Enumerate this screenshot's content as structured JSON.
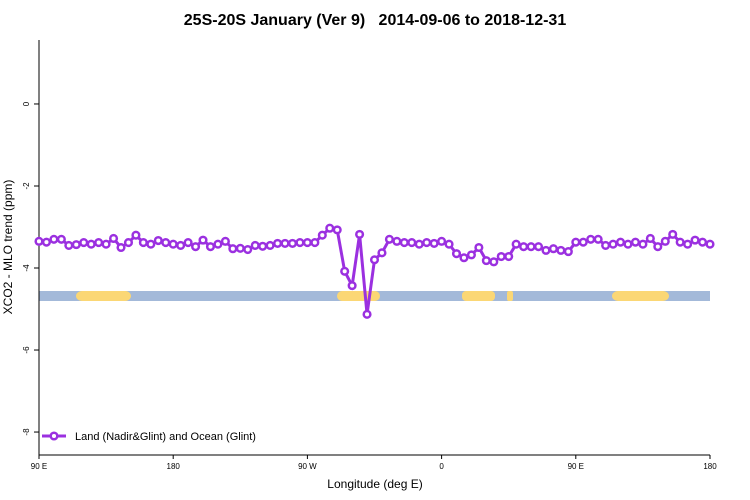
{
  "chart_data": {
    "type": "line",
    "title": "25S-20S January (Ver 9)   2014-09-06 to 2018-12-31",
    "x_label": "Longitude (deg E)",
    "y_label": "XCO2 - MLO trend (ppm)",
    "x": [
      90,
      95,
      100,
      105,
      110,
      115,
      120,
      125,
      130,
      135,
      140,
      145,
      150,
      155,
      160,
      165,
      170,
      175,
      180,
      185,
      190,
      195,
      200,
      205,
      210,
      215,
      220,
      225,
      230,
      235,
      240,
      245,
      250,
      255,
      260,
      265,
      270,
      275,
      280,
      285,
      290,
      295,
      300,
      305,
      310,
      315,
      320,
      325,
      330,
      335,
      340,
      345,
      350,
      355,
      360,
      365,
      370,
      375,
      380,
      385,
      390,
      395,
      400,
      405,
      410,
      415,
      420,
      425,
      430,
      435,
      440,
      445,
      450,
      455,
      460,
      465,
      470,
      475,
      480,
      485,
      490,
      495,
      500,
      505,
      510,
      515,
      520,
      525,
      530,
      535,
      540
    ],
    "series": [
      {
        "name": "Land (Nadir&Glint) and Ocean (Glint)",
        "color": "#9b30e0",
        "values": [
          -3.35,
          -3.37,
          -3.3,
          -3.3,
          -3.45,
          -3.43,
          -3.38,
          -3.42,
          -3.38,
          -3.42,
          -3.28,
          -3.5,
          -3.38,
          -3.2,
          -3.38,
          -3.42,
          -3.33,
          -3.38,
          -3.42,
          -3.45,
          -3.38,
          -3.48,
          -3.32,
          -3.48,
          -3.42,
          -3.35,
          -3.53,
          -3.52,
          -3.55,
          -3.45,
          -3.47,
          -3.45,
          -3.4,
          -3.4,
          -3.4,
          -3.38,
          -3.38,
          -3.38,
          -3.2,
          -3.03,
          -3.07,
          -4.08,
          -4.43,
          -3.18,
          -5.13,
          -3.8,
          -3.63,
          -3.3,
          -3.35,
          -3.38,
          -3.38,
          -3.42,
          -3.38,
          -3.4,
          -3.35,
          -3.42,
          -3.65,
          -3.75,
          -3.68,
          -3.5,
          -3.82,
          -3.85,
          -3.72,
          -3.72,
          -3.42,
          -3.48,
          -3.48,
          -3.48,
          -3.57,
          -3.53,
          -3.57,
          -3.6,
          -3.37,
          -3.37,
          -3.3,
          -3.3,
          -3.45,
          -3.42,
          -3.37,
          -3.42,
          -3.37,
          -3.42,
          -3.28,
          -3.48,
          -3.35,
          -3.18,
          -3.37,
          -3.42,
          -3.32,
          -3.37,
          -3.42
        ]
      }
    ],
    "xlim": [
      90,
      540
    ],
    "xticks": [
      {
        "value": 90,
        "label": "90 E"
      },
      180,
      {
        "value": 270,
        "label": "90 W"
      },
      {
        "value": 360,
        "label": "0"
      },
      {
        "value": 450,
        "label": "90 E"
      },
      {
        "value": 540,
        "label": "180"
      }
    ],
    "ylim": [
      -8.56,
      1.56
    ],
    "yticks": [
      0,
      -2,
      -4,
      -6,
      -8
    ],
    "legend": "bottom-left"
  }
}
